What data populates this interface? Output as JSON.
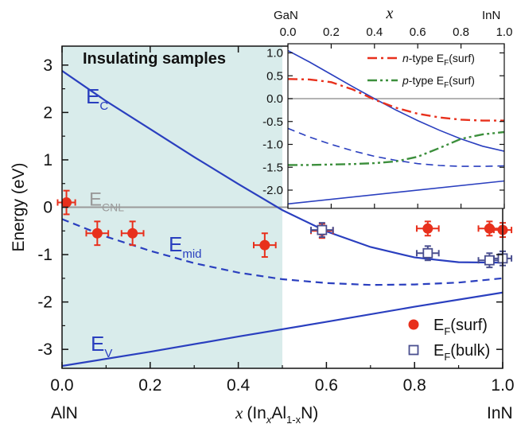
{
  "chart_data": [
    {
      "type": "line",
      "title": "",
      "xlabel": {
        "main": "x",
        "formula": "(In",
        "sub1": "x",
        "mid": "Al",
        "sub2": "1-x",
        "end": "N)"
      },
      "ylabel": "Energy (eV)",
      "xlim": [
        0.0,
        1.0
      ],
      "ylim": [
        -3.4,
        3.4
      ],
      "x_ticks": [
        "0.0",
        "0.2",
        "0.4",
        "0.6",
        "0.8",
        "1.0"
      ],
      "y_ticks": [
        "3",
        "2",
        "1",
        "0",
        "-1",
        "-2",
        "-3"
      ],
      "x_end_labels": {
        "left": "AlN",
        "right": "InN"
      },
      "shaded_region": {
        "label": "Insulating samples",
        "x_range": [
          0.0,
          0.5
        ],
        "color": "#d9eceb"
      },
      "reference_line": {
        "label_main": "E",
        "label_sub": "CNL",
        "y": 0.0,
        "color": "#9a9a9a"
      },
      "series": [
        {
          "label_main": "E",
          "label_sub": "C",
          "style": "solid",
          "color": "#2a3fbf",
          "x": [
            0.0,
            0.1,
            0.2,
            0.3,
            0.4,
            0.5,
            0.6,
            0.7,
            0.8,
            0.9,
            1.0
          ],
          "y": [
            2.88,
            2.24,
            1.65,
            1.06,
            0.49,
            -0.06,
            -0.51,
            -0.84,
            -1.06,
            -1.16,
            -1.17
          ]
        },
        {
          "label_main": "E",
          "label_sub": "mid",
          "style": "dashed",
          "color": "#2a3fbf",
          "x": [
            0.0,
            0.1,
            0.2,
            0.3,
            0.4,
            0.5,
            0.6,
            0.7,
            0.8,
            0.9,
            1.0
          ],
          "y": [
            -0.25,
            -0.62,
            -0.92,
            -1.18,
            -1.38,
            -1.52,
            -1.6,
            -1.64,
            -1.63,
            -1.59,
            -1.5
          ]
        },
        {
          "label_main": "E",
          "label_sub": "V",
          "style": "solid",
          "color": "#2a3fbf",
          "x": [
            0.0,
            0.2,
            0.4,
            0.6,
            0.8,
            1.0
          ],
          "y": [
            -3.35,
            -3.05,
            -2.73,
            -2.42,
            -2.1,
            -1.8
          ]
        }
      ],
      "scatter": [
        {
          "legend_main": "E",
          "legend_sub": "F",
          "legend_suffix": "(surf)",
          "marker": "filled-circle",
          "color": "#e8301c",
          "points": [
            {
              "x": 0.01,
              "y": 0.1,
              "xerr": 0.02,
              "yerr": 0.25
            },
            {
              "x": 0.08,
              "y": -0.55,
              "xerr": 0.025,
              "yerr": 0.25
            },
            {
              "x": 0.16,
              "y": -0.55,
              "xerr": 0.025,
              "yerr": 0.25
            },
            {
              "x": 0.46,
              "y": -0.8,
              "xerr": 0.025,
              "yerr": 0.25
            },
            {
              "x": 0.59,
              "y": -0.5,
              "xerr": 0.025,
              "yerr": 0.15
            },
            {
              "x": 0.83,
              "y": -0.45,
              "xerr": 0.025,
              "yerr": 0.15
            },
            {
              "x": 0.97,
              "y": -0.45,
              "xerr": 0.025,
              "yerr": 0.15
            },
            {
              "x": 1.0,
              "y": -0.48,
              "xerr": 0.02,
              "yerr": 0.15
            }
          ]
        },
        {
          "legend_main": "E",
          "legend_sub": "F",
          "legend_suffix": "(bulk)",
          "marker": "open-square",
          "color": "#4a4f8f",
          "points": [
            {
              "x": 0.59,
              "y": -0.48,
              "xerr": 0.025,
              "yerr": 0.15
            },
            {
              "x": 0.83,
              "y": -0.97,
              "xerr": 0.025,
              "yerr": 0.15
            },
            {
              "x": 0.97,
              "y": -1.12,
              "xerr": 0.025,
              "yerr": 0.15
            },
            {
              "x": 1.0,
              "y": -1.08,
              "xerr": 0.02,
              "yerr": 0.15
            }
          ]
        }
      ],
      "legend_placement": "bottom-right"
    },
    {
      "type": "line",
      "title": "",
      "xlabel": "x",
      "xlim": [
        0.0,
        1.0
      ],
      "ylim": [
        -2.4,
        1.2
      ],
      "x_ticks": [
        "0.0",
        "0.2",
        "0.4",
        "0.6",
        "0.8",
        "1.0"
      ],
      "y_ticks": [
        "1.0",
        "0.5",
        "0.0",
        "-0.5",
        "-1.0",
        "-1.5",
        "-2.0"
      ],
      "x_end_labels": {
        "left": "GaN",
        "right": "InN"
      },
      "reference_line": {
        "y": 0.0,
        "color": "#9a9a9a"
      },
      "series": [
        {
          "style": "solid",
          "color": "#2a3fbf",
          "x": [
            0.0,
            0.1,
            0.2,
            0.3,
            0.4,
            0.5,
            0.6,
            0.7,
            0.8,
            0.9,
            1.0
          ],
          "y": [
            1.05,
            0.8,
            0.53,
            0.26,
            0.0,
            -0.25,
            -0.48,
            -0.69,
            -0.88,
            -1.04,
            -1.15
          ]
        },
        {
          "style": "dashed",
          "color": "#2a3fbf",
          "x": [
            0.0,
            0.1,
            0.2,
            0.3,
            0.4,
            0.5,
            0.6,
            0.7,
            0.8,
            0.9,
            1.0
          ],
          "y": [
            -0.65,
            -0.84,
            -1.0,
            -1.14,
            -1.26,
            -1.35,
            -1.42,
            -1.46,
            -1.48,
            -1.48,
            -1.47
          ]
        },
        {
          "style": "solid",
          "color": "#2a3fbf",
          "x": [
            0.0,
            1.0
          ],
          "y": [
            -2.3,
            -1.8
          ]
        },
        {
          "legend_italic": "n",
          "legend_text": "-type E",
          "legend_sub": "F",
          "legend_suffix": "(surf)",
          "style": "dashdot",
          "color": "#e8301c",
          "x": [
            0.0,
            0.1,
            0.2,
            0.3,
            0.4,
            0.5,
            0.6,
            0.7,
            0.8,
            0.9,
            1.0
          ],
          "y": [
            0.43,
            0.42,
            0.36,
            0.2,
            -0.02,
            -0.2,
            -0.33,
            -0.41,
            -0.46,
            -0.48,
            -0.48
          ]
        },
        {
          "legend_italic": "p",
          "legend_text": "-type E",
          "legend_sub": "F",
          "legend_suffix": "(surf)",
          "style": "dashdotdot",
          "color": "#3c8f3c",
          "x": [
            0.0,
            0.1,
            0.2,
            0.3,
            0.4,
            0.5,
            0.6,
            0.7,
            0.8,
            0.9,
            1.0
          ],
          "y": [
            -1.45,
            -1.45,
            -1.44,
            -1.43,
            -1.41,
            -1.37,
            -1.27,
            -1.08,
            -0.88,
            -0.78,
            -0.73
          ]
        }
      ],
      "legend_placement": "top-right"
    }
  ]
}
